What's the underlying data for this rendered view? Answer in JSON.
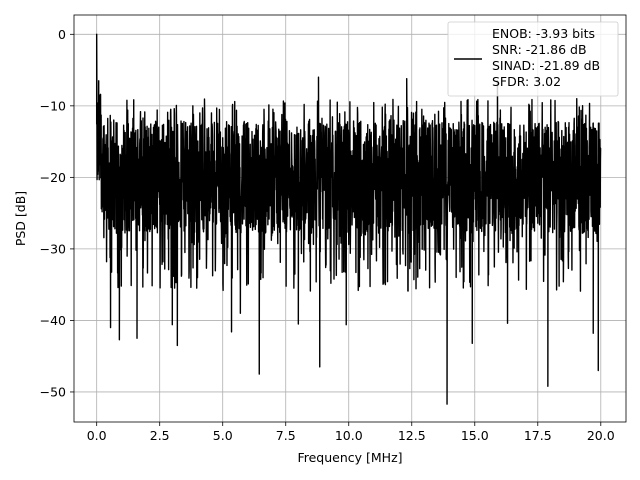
{
  "chart_data": {
    "type": "line",
    "xlabel": "Frequency [MHz]",
    "ylabel": "PSD [dB]",
    "xlim": [
      -0.9,
      21.0
    ],
    "ylim": [
      -54.2,
      2.7
    ],
    "x_ticks": [
      0.0,
      2.5,
      5.0,
      7.5,
      10.0,
      12.5,
      15.0,
      17.5,
      20.0
    ],
    "x_tick_labels": [
      "0.0",
      "2.5",
      "5.0",
      "7.5",
      "10.0",
      "12.5",
      "15.0",
      "17.5",
      "20.0"
    ],
    "y_ticks": [
      0,
      -10,
      -20,
      -30,
      -40,
      -50
    ],
    "y_tick_labels": [
      "0",
      "−10",
      "−20",
      "−30",
      "−40",
      "−50"
    ],
    "grid": true,
    "legend_position": "top-right",
    "legend_lines": [
      "ENOB: -3.93 bits",
      "SNR: -21.86 dB",
      "SINAD: -21.89 dB",
      "SFDR: 3.02"
    ],
    "series": [
      {
        "color": "#000000",
        "x_range": [
          0.0,
          20.0
        ],
        "band_center_db": -20,
        "band_upper_db": -13,
        "band_lower_db": -28,
        "peak_value_db": 0,
        "peaks": [
          {
            "x": 0.0,
            "y": 0.0
          },
          {
            "x": 0.08,
            "y": -6.5
          },
          {
            "x": 8.8,
            "y": -6.0
          },
          {
            "x": 12.3,
            "y": -6.2
          },
          {
            "x": 15.9,
            "y": -6.5
          }
        ],
        "dips": [
          {
            "x": 0.55,
            "y": -41
          },
          {
            "x": 0.9,
            "y": -42.7
          },
          {
            "x": 1.6,
            "y": -42.5
          },
          {
            "x": 3.0,
            "y": -40.6
          },
          {
            "x": 3.2,
            "y": -43.5
          },
          {
            "x": 5.35,
            "y": -41.6
          },
          {
            "x": 5.7,
            "y": -39
          },
          {
            "x": 6.45,
            "y": -47.5
          },
          {
            "x": 8.0,
            "y": -40.5
          },
          {
            "x": 8.85,
            "y": -46.5
          },
          {
            "x": 9.9,
            "y": -40.6
          },
          {
            "x": 13.9,
            "y": -51.7
          },
          {
            "x": 14.9,
            "y": -43.2
          },
          {
            "x": 16.3,
            "y": -40.4
          },
          {
            "x": 17.9,
            "y": -49.2
          },
          {
            "x": 19.7,
            "y": -41.8
          },
          {
            "x": 19.9,
            "y": -47.0
          }
        ]
      }
    ]
  }
}
